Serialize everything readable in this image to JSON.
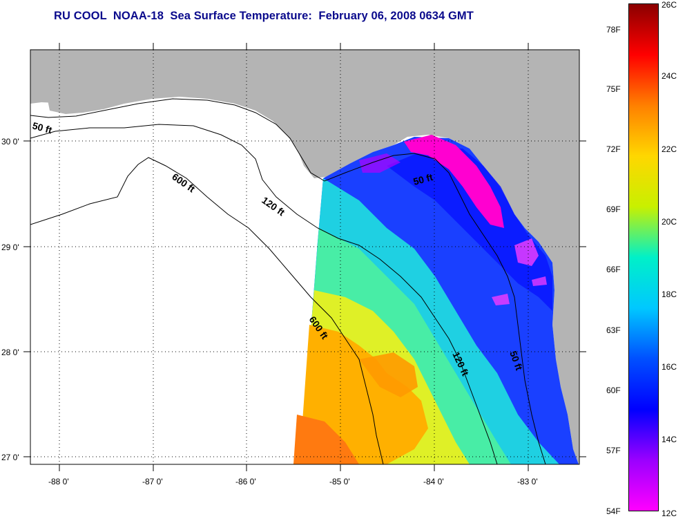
{
  "title": "RU COOL  NOAA-18  Sea Surface Temperature:  February 06, 2008 0634 GMT",
  "map": {
    "lon_ticks": [
      "-88 0'",
      "-87 0'",
      "-86 0'",
      "-85 0'",
      "-84 0'",
      "-83 0'"
    ],
    "lat_ticks": [
      "30 0'",
      "29 0'",
      "28 0'",
      "27 0'"
    ],
    "contour_labels": [
      "50 ft",
      "600 ft",
      "120 ft",
      "50 ft",
      "600 ft",
      "120 ft",
      "50 ft"
    ],
    "land_color": "#b4b4b4",
    "no_data_color": "#ffffff"
  },
  "colorbar": {
    "fahrenheit": [
      "78F",
      "75F",
      "72F",
      "69F",
      "66F",
      "63F",
      "60F",
      "57F",
      "54F"
    ],
    "celsius": [
      "26C",
      "24C",
      "22C",
      "20C",
      "18C",
      "16C",
      "14C",
      "12C"
    ],
    "colors": [
      "#8b0000",
      "#ff0000",
      "#ff8000",
      "#ffd700",
      "#c8f000",
      "#00f0c8",
      "#00c8ff",
      "#0050ff",
      "#0000ff",
      "#9a00ff",
      "#ff00ff"
    ]
  }
}
